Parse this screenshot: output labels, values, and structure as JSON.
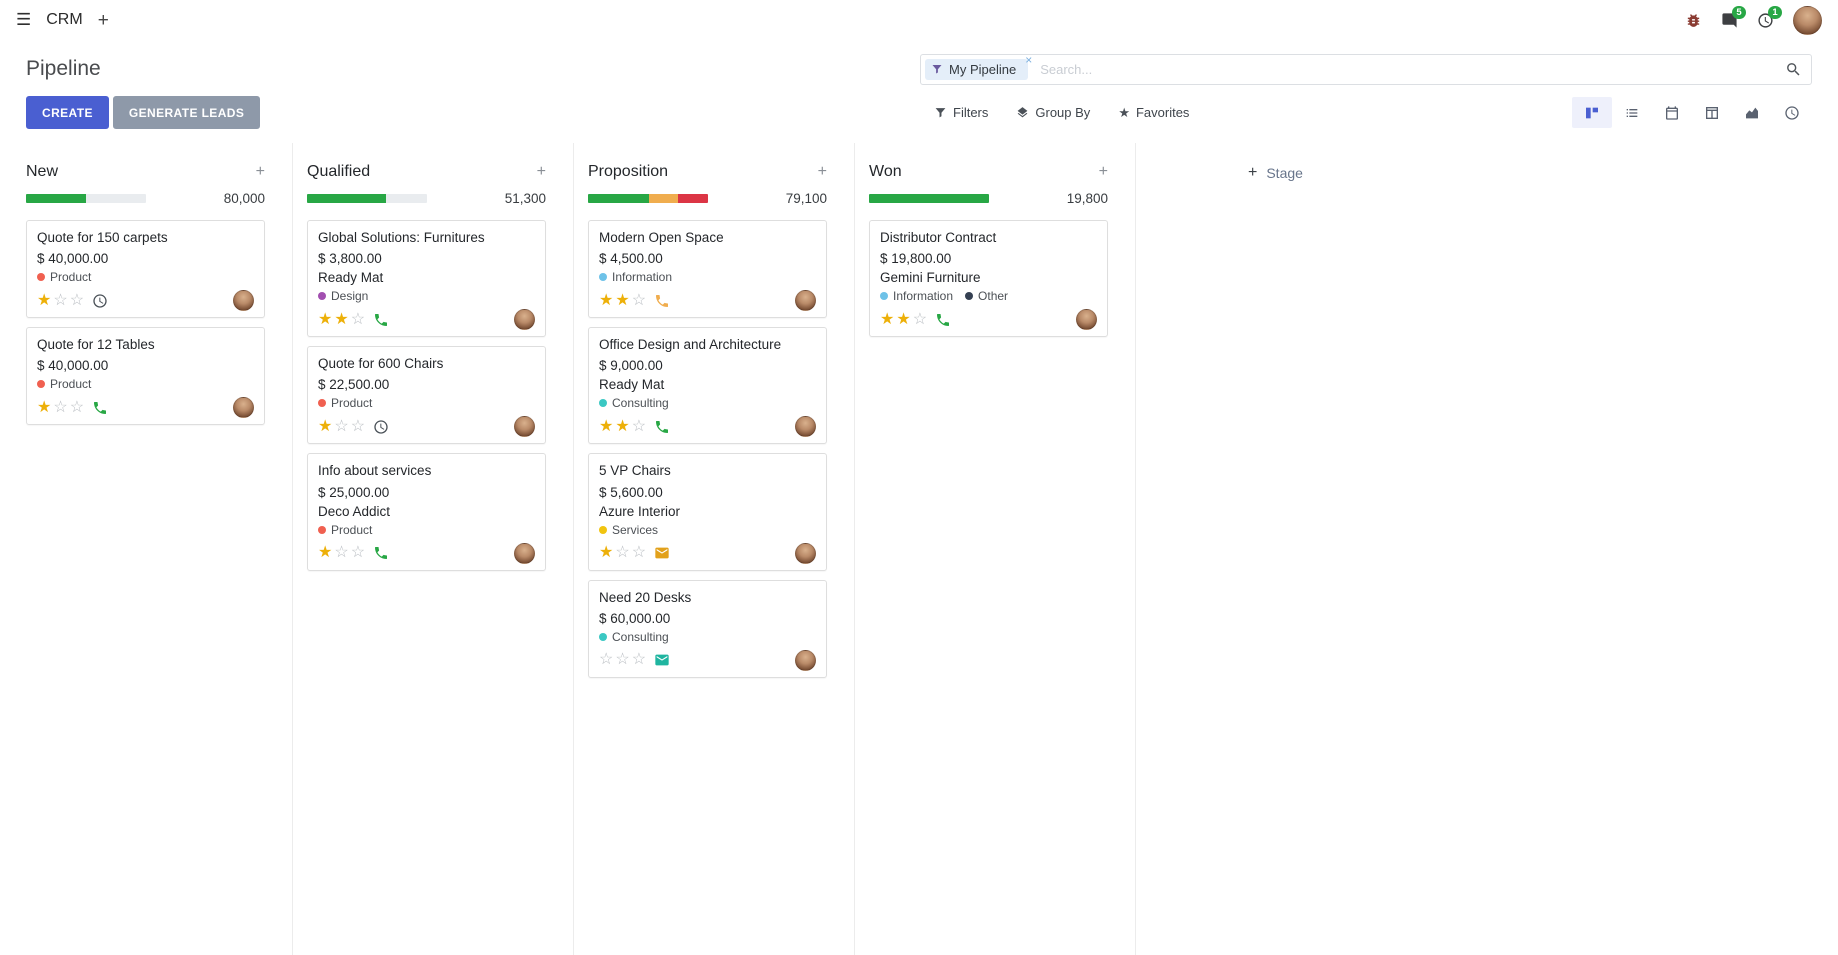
{
  "colors": {
    "primary": "#4a5fd1",
    "secondary": "#8e99a9",
    "success": "#28a745",
    "warning": "#f0ad4e",
    "danger": "#dc3545",
    "star": "#edb009",
    "progress-bg": "#e9ecef"
  },
  "icons": {
    "hamburger": "☰",
    "plus": "+",
    "close": "×",
    "favorites_star": "★"
  },
  "navbar": {
    "app_name": "CRM",
    "chat_badge": "5",
    "activity_badge": "1"
  },
  "control_panel": {
    "title": "Pipeline",
    "create_label": "CREATE",
    "generate_leads_label": "GENERATE LEADS",
    "search": {
      "facet_label": "My Pipeline",
      "placeholder": "Search..."
    },
    "filters_label": "Filters",
    "group_by_label": "Group By",
    "favorites_label": "Favorites"
  },
  "kanban": {
    "add_stage_label": "Stage",
    "columns": [
      {
        "name": "New",
        "total": "80,000",
        "progress": [
          {
            "color": "#28a745",
            "pct": 50
          }
        ],
        "cards": [
          {
            "title": "Quote for 150 carpets",
            "amount": "$ 40,000.00",
            "partner": "",
            "tags": [
              {
                "label": "Product",
                "color": "#f06050"
              }
            ],
            "stars": 1,
            "activity": {
              "icon": "clock",
              "color": "#495057"
            }
          },
          {
            "title": "Quote for 12 Tables",
            "amount": "$ 40,000.00",
            "partner": "",
            "tags": [
              {
                "label": "Product",
                "color": "#f06050"
              }
            ],
            "stars": 1,
            "activity": {
              "icon": "phone",
              "color": "#28a745"
            }
          }
        ]
      },
      {
        "name": "Qualified",
        "total": "51,300",
        "progress": [
          {
            "color": "#28a745",
            "pct": 66
          }
        ],
        "cards": [
          {
            "title": "Global Solutions: Furnitures",
            "amount": "$ 3,800.00",
            "partner": "Ready Mat",
            "tags": [
              {
                "label": "Design",
                "color": "#a24fb0"
              }
            ],
            "stars": 2,
            "activity": {
              "icon": "phone",
              "color": "#28a745"
            }
          },
          {
            "title": "Quote for 600 Chairs",
            "amount": "$ 22,500.00",
            "partner": "",
            "tags": [
              {
                "label": "Product",
                "color": "#f06050"
              }
            ],
            "stars": 1,
            "activity": {
              "icon": "clock",
              "color": "#495057"
            }
          },
          {
            "title": "Info about services",
            "amount": "$ 25,000.00",
            "partner": "Deco Addict",
            "tags": [
              {
                "label": "Product",
                "color": "#f06050"
              }
            ],
            "stars": 1,
            "activity": {
              "icon": "phone",
              "color": "#28a745"
            }
          }
        ]
      },
      {
        "name": "Proposition",
        "total": "79,100",
        "progress": [
          {
            "color": "#28a745",
            "pct": 51
          },
          {
            "color": "#f0ad4e",
            "pct": 24
          },
          {
            "color": "#dc3545",
            "pct": 25
          }
        ],
        "cards": [
          {
            "title": "Modern Open Space",
            "amount": "$ 4,500.00",
            "partner": "",
            "tags": [
              {
                "label": "Information",
                "color": "#6ec2e8"
              }
            ],
            "stars": 2,
            "activity": {
              "icon": "phone",
              "color": "#f0ad4e"
            }
          },
          {
            "title": "Office Design and Architecture",
            "amount": "$ 9,000.00",
            "partner": "Ready Mat",
            "tags": [
              {
                "label": "Consulting",
                "color": "#3bc8c3"
              }
            ],
            "stars": 2,
            "activity": {
              "icon": "phone",
              "color": "#28a745"
            }
          },
          {
            "title": "5 VP Chairs",
            "amount": "$ 5,600.00",
            "partner": "Azure Interior",
            "tags": [
              {
                "label": "Services",
                "color": "#f1c40f"
              }
            ],
            "stars": 1,
            "activity": {
              "icon": "envelope",
              "color": "#e2a11b"
            }
          },
          {
            "title": "Need 20 Desks",
            "amount": "$ 60,000.00",
            "partner": "",
            "tags": [
              {
                "label": "Consulting",
                "color": "#3bc8c3"
              }
            ],
            "stars": 0,
            "activity": {
              "icon": "envelope",
              "color": "#1fb5a0"
            }
          }
        ]
      },
      {
        "name": "Won",
        "total": "19,800",
        "progress": [
          {
            "color": "#28a745",
            "pct": 100
          }
        ],
        "cards": [
          {
            "title": "Distributor Contract",
            "amount": "$ 19,800.00",
            "partner": "Gemini Furniture",
            "tags": [
              {
                "label": "Information",
                "color": "#6ec2e8"
              },
              {
                "label": "Other",
                "color": "#354052"
              }
            ],
            "stars": 2,
            "activity": {
              "icon": "phone",
              "color": "#28a745"
            }
          }
        ]
      }
    ]
  }
}
